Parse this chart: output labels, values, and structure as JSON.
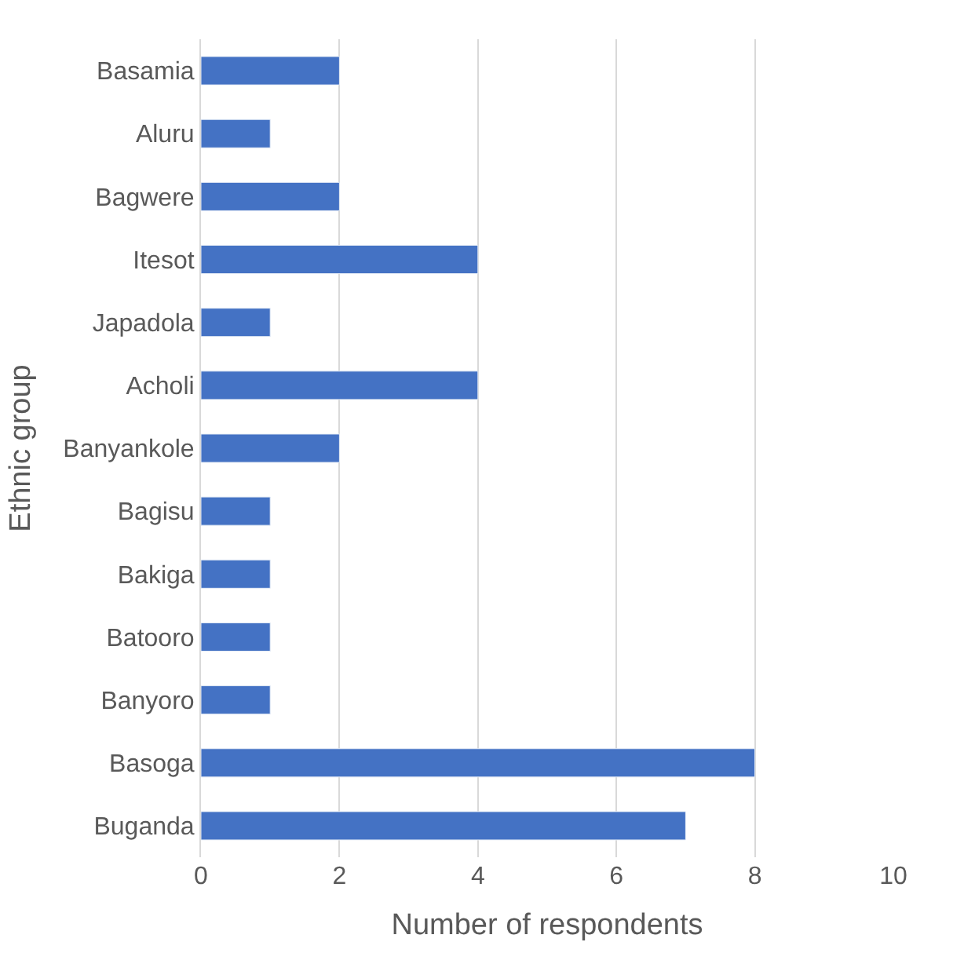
{
  "chart_data": {
    "type": "bar",
    "orientation": "horizontal",
    "xlabel": "Number of respondents",
    "ylabel": "Ethnic group",
    "categories": [
      "Basamia",
      "Aluru",
      "Bagwere",
      "Itesot",
      "Japadola",
      "Acholi",
      "Banyankole",
      "Bagisu",
      "Bakiga",
      "Batooro",
      "Banyoro",
      "Basoga",
      "Buganda"
    ],
    "values": [
      2,
      1,
      2,
      4,
      1,
      4,
      2,
      1,
      1,
      1,
      1,
      8,
      7
    ],
    "color": "#4472c4",
    "xlim": [
      0,
      10
    ],
    "xticks": [
      0,
      2,
      4,
      6,
      8,
      10
    ],
    "grid": "x"
  }
}
